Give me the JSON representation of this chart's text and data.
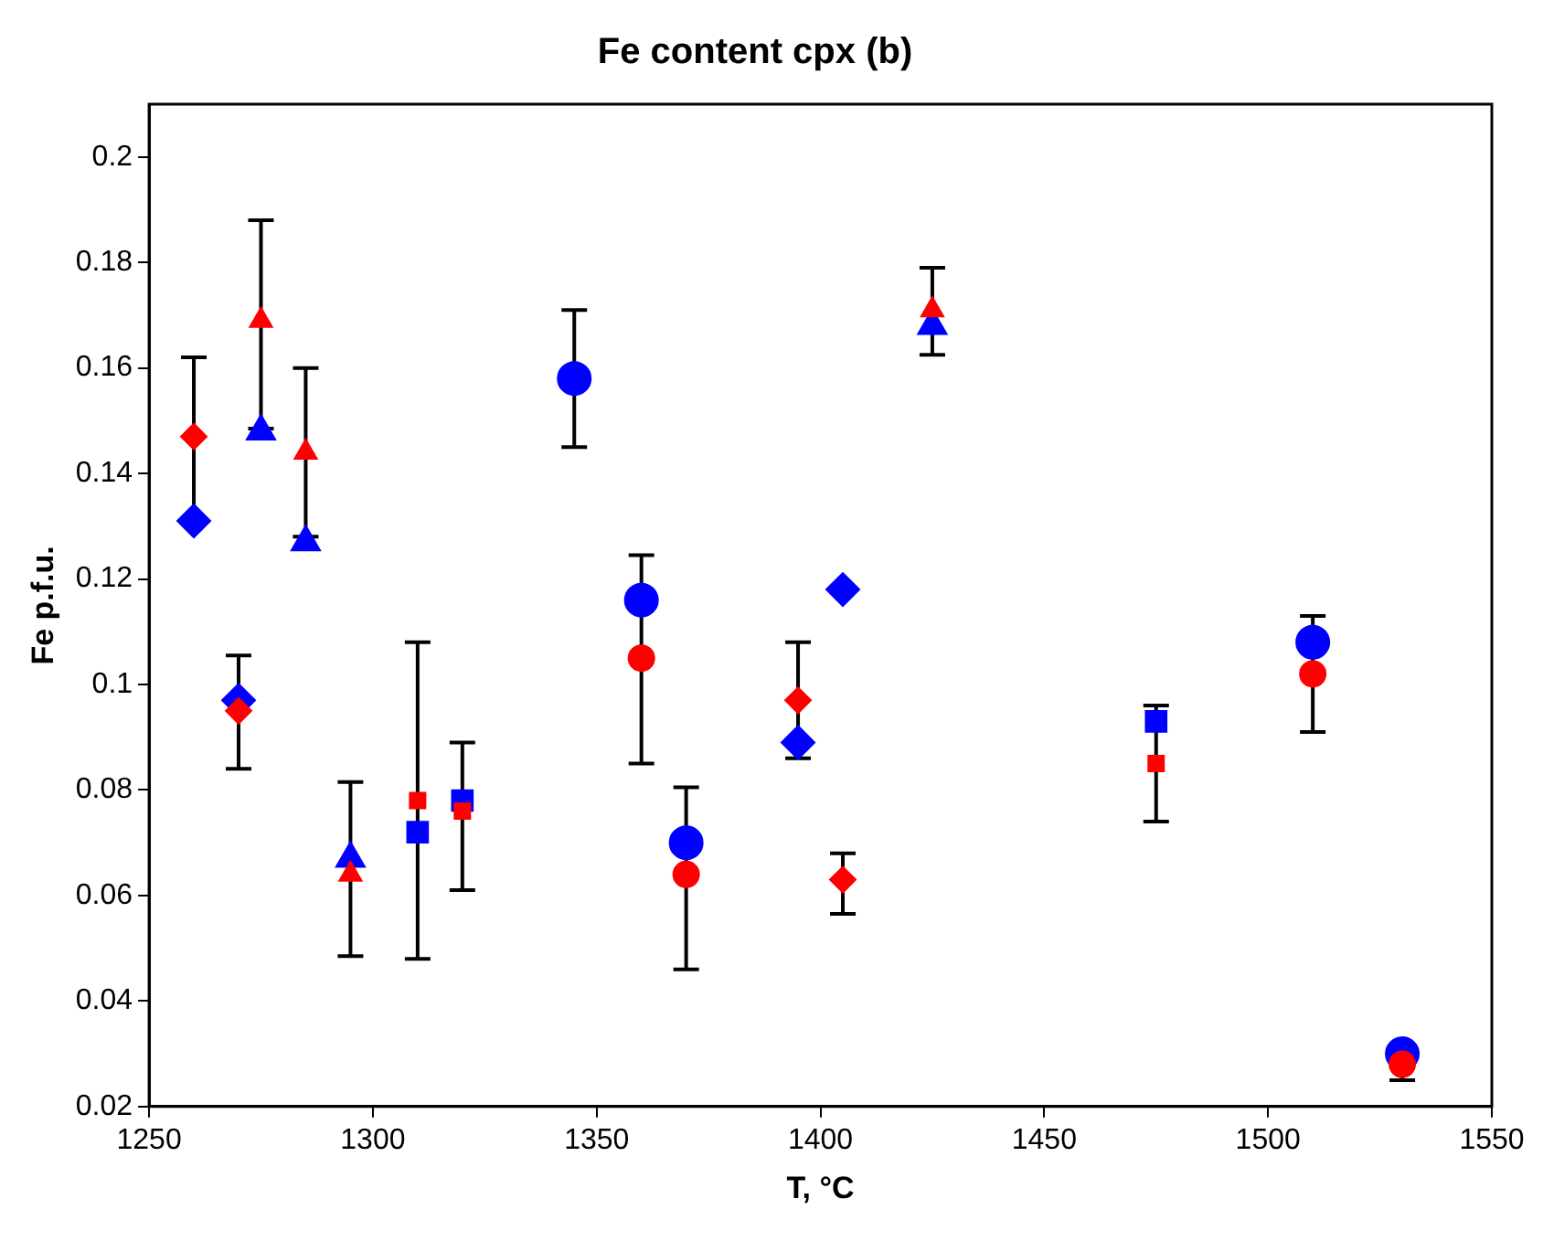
{
  "chart_data": {
    "type": "scatter",
    "title": "Fe content cpx (b)",
    "xlabel": "T, °C",
    "ylabel": "Fe p.f.u.",
    "xlim": [
      1250,
      1550
    ],
    "xticks": [
      1250,
      1300,
      1350,
      1400,
      1450,
      1500,
      1550
    ],
    "ylim": [
      0.02,
      0.21
    ],
    "yticks": [
      0.02,
      0.04,
      0.06,
      0.08,
      0.1,
      0.12,
      0.14,
      0.16,
      0.18,
      0.2
    ],
    "series": [
      {
        "color": "#ff0000",
        "marker": "diamond",
        "x": [
          1260,
          1270
        ],
        "values": [
          0.147,
          0.095
        ]
      },
      {
        "color": "#0000ff",
        "marker": "diamond",
        "x": [
          1260,
          1270
        ],
        "values": [
          0.131,
          0.097
        ],
        "errors": [
          [
            0.131,
            0.162
          ],
          [
            0.084,
            0.1055
          ]
        ]
      },
      {
        "color": "#ff0000",
        "marker": "triangle",
        "x": [
          1275,
          1285,
          1295
        ],
        "values": [
          0.169,
          0.144,
          0.064
        ]
      },
      {
        "color": "#0000ff",
        "marker": "triangle",
        "x": [
          1275,
          1285,
          1295
        ],
        "values": [
          0.148,
          0.127,
          0.067
        ],
        "errors": [
          [
            0.1485,
            0.188
          ],
          [
            0.128,
            0.16
          ],
          [
            0.0485,
            0.0815
          ]
        ]
      },
      {
        "color": "#ff0000",
        "marker": "square",
        "x": [
          1310,
          1320
        ],
        "values": [
          0.078,
          0.076
        ]
      },
      {
        "color": "#0000ff",
        "marker": "square",
        "x": [
          1310,
          1320
        ],
        "values": [
          0.072,
          0.078
        ],
        "errors": [
          [
            0.048,
            0.108
          ],
          [
            0.061,
            0.089
          ]
        ]
      },
      {
        "color": "#ff0000",
        "marker": "circle",
        "x": [
          1360,
          1370
        ],
        "values": [
          0.105,
          0.064
        ]
      },
      {
        "color": "#0000ff",
        "marker": "circle",
        "x": [
          1345,
          1360,
          1370
        ],
        "values": [
          0.158,
          0.116,
          0.07
        ],
        "errors": [
          [
            0.145,
            0.171
          ],
          [
            0.085,
            0.1245
          ],
          [
            0.046,
            0.0805
          ]
        ]
      },
      {
        "color": "#ff0000",
        "marker": "diamond",
        "x": [
          1395,
          1405
        ],
        "values": [
          0.097,
          0.063
        ],
        "errors": [
          null,
          [
            0.0565,
            0.068
          ]
        ]
      },
      {
        "color": "#0000ff",
        "marker": "diamond",
        "x": [
          1395,
          1405
        ],
        "values": [
          0.089,
          0.118
        ],
        "errors": [
          [
            0.086,
            0.108
          ],
          null
        ]
      },
      {
        "color": "#ff0000",
        "marker": "triangle",
        "x": [
          1425
        ],
        "values": [
          0.171
        ]
      },
      {
        "color": "#0000ff",
        "marker": "triangle",
        "x": [
          1425
        ],
        "values": [
          0.168
        ],
        "errors": [
          [
            0.1625,
            0.179
          ]
        ]
      },
      {
        "color": "#ff0000",
        "marker": "square",
        "x": [
          1475
        ],
        "values": [
          0.085
        ]
      },
      {
        "color": "#0000ff",
        "marker": "square",
        "x": [
          1475
        ],
        "values": [
          0.093
        ],
        "errors": [
          [
            0.074,
            0.096
          ]
        ]
      },
      {
        "color": "#ff0000",
        "marker": "circle",
        "x": [
          1510,
          1530
        ],
        "values": [
          0.102,
          0.028
        ]
      },
      {
        "color": "#0000ff",
        "marker": "circle",
        "x": [
          1510,
          1530
        ],
        "values": [
          0.108,
          0.03
        ],
        "errors": [
          [
            0.091,
            0.113
          ],
          [
            0.025,
            0.0305
          ]
        ]
      }
    ]
  }
}
